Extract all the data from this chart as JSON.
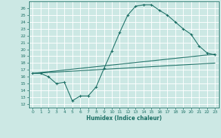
{
  "xlabel": "Humidex (Indice chaleur)",
  "bg_color": "#cce8e4",
  "grid_color": "#ffffff",
  "line_color": "#1a6e64",
  "xlim": [
    -0.5,
    23.5
  ],
  "ylim": [
    11.5,
    27
  ],
  "xticks": [
    0,
    1,
    2,
    3,
    4,
    5,
    6,
    7,
    8,
    9,
    10,
    11,
    12,
    13,
    14,
    15,
    16,
    17,
    18,
    19,
    20,
    21,
    22,
    23
  ],
  "yticks": [
    12,
    13,
    14,
    15,
    16,
    17,
    18,
    19,
    20,
    21,
    22,
    23,
    24,
    25,
    26
  ],
  "curve1_x": [
    0,
    1,
    2,
    3,
    4,
    5,
    6,
    7,
    8,
    9,
    10,
    11,
    12,
    13,
    14,
    15,
    16,
    17,
    18,
    19,
    20,
    21,
    22,
    23
  ],
  "curve1_y": [
    16.5,
    16.5,
    16.0,
    15.0,
    15.2,
    12.5,
    13.2,
    13.2,
    14.5,
    17.2,
    19.8,
    22.5,
    25.0,
    26.3,
    26.5,
    26.5,
    25.7,
    25.0,
    24.0,
    23.0,
    22.2,
    20.5,
    19.5,
    19.2
  ],
  "curve2_x": [
    0,
    23
  ],
  "curve2_y": [
    16.5,
    19.3
  ],
  "curve3_x": [
    0,
    23
  ],
  "curve3_y": [
    16.5,
    18.0
  ]
}
